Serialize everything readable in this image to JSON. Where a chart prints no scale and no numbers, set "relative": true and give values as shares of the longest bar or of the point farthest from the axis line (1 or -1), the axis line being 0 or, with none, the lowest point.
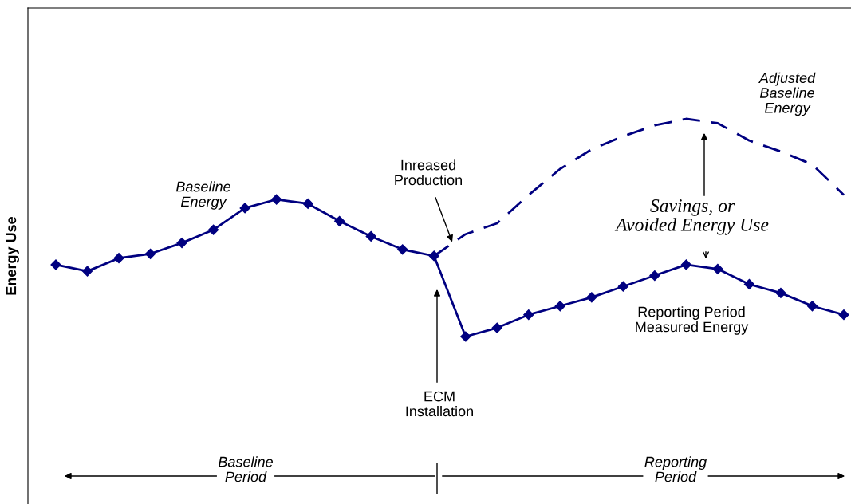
{
  "chart_data": {
    "type": "line",
    "relative": true,
    "ylabel": "Energy Use",
    "legend": false,
    "categories": [
      null,
      null,
      null,
      null,
      null,
      null,
      null,
      null,
      null,
      null,
      null,
      null,
      null,
      null,
      null,
      null,
      null,
      null,
      null,
      null,
      null,
      null,
      null,
      null,
      null,
      null
    ],
    "series": [
      {
        "color": "#000080",
        "marker": "diamond",
        "line_style": "solid",
        "values": [
          0.33,
          0.3,
          0.36,
          0.38,
          0.43,
          0.49,
          0.59,
          0.63,
          0.61,
          0.53,
          0.46,
          0.4,
          0.37,
          0,
          0.04,
          0.1,
          0.14,
          0.18,
          0.23,
          0.28,
          0.33,
          0.31,
          0.24,
          0.2,
          0.14,
          0.1
        ]
      },
      {
        "color": "#000080",
        "marker": "none",
        "line_style": "dashed",
        "values": [
          null,
          null,
          null,
          null,
          null,
          null,
          null,
          null,
          null,
          null,
          null,
          null,
          0.37,
          0.47,
          0.52,
          0.65,
          0.77,
          0.86,
          0.92,
          0.97,
          1.0,
          0.98,
          0.9,
          0.85,
          0.79,
          0.65
        ]
      }
    ],
    "annotations": [
      "Baseline\nEnergy",
      "Inreased\nProduction",
      "Adjusted\nBaseline\nEnergy",
      "Savings, or\nAvoided Energy Use",
      "Reporting Period\nMeasured Energy",
      "ECM\nInstallation",
      "Baseline\nPeriod",
      "Reporting\nPeriod"
    ]
  }
}
